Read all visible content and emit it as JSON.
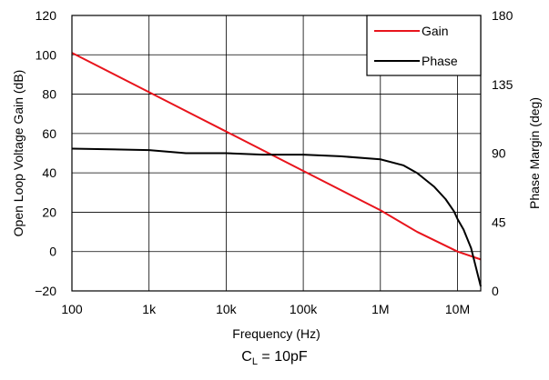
{
  "chart_data": {
    "type": "line",
    "xlabel": "Frequency (Hz)",
    "ylabel": "Open Loop Voltage Gain (dB)",
    "y2label": "Phase Margin (deg)",
    "xscale": "log",
    "xlim": [
      100,
      20000000
    ],
    "ylim": [
      -20,
      120
    ],
    "y2lim": [
      0,
      180
    ],
    "x_ticks": [
      100,
      1000,
      10000,
      100000,
      1000000,
      10000000
    ],
    "x_tick_labels": [
      "100",
      "1k",
      "10k",
      "100k",
      "1M",
      "10M"
    ],
    "y_ticks": [
      -20,
      0,
      20,
      40,
      60,
      80,
      100,
      120
    ],
    "y_tick_labels": [
      "−20",
      "0",
      "20",
      "40",
      "60",
      "80",
      "100",
      "120"
    ],
    "y2_ticks": [
      0,
      45,
      90,
      135,
      180
    ],
    "y2_tick_labels": [
      "0",
      "45",
      "90",
      "135",
      "180"
    ],
    "grid": true,
    "legend": "top-right",
    "series": [
      {
        "name": "Gain",
        "axis": "left",
        "color": "#e8141c",
        "x": [
          100,
          1000,
          10000,
          100000,
          1000000,
          3000000,
          10000000,
          20000000
        ],
        "y": [
          101,
          81,
          61,
          41,
          21,
          10,
          0,
          -4
        ]
      },
      {
        "name": "Phase",
        "axis": "right",
        "color": "#000000",
        "x": [
          100,
          1000,
          3000,
          10000,
          30000,
          100000,
          300000,
          1000000,
          2000000,
          3000000,
          5000000,
          7000000,
          9000000,
          10000000,
          12000000,
          15000000,
          20000000
        ],
        "y": [
          93,
          92,
          90,
          90,
          89,
          89,
          88,
          86,
          82,
          77,
          68,
          60,
          52,
          47,
          40,
          28,
          3
        ]
      }
    ]
  },
  "caption": {
    "main": "C",
    "sub": "L",
    "rest": " = 10pF"
  }
}
